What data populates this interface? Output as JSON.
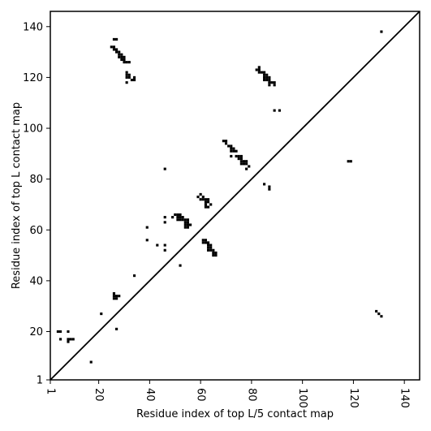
{
  "chart_data": {
    "type": "scatter",
    "xlabel": "Residue index of top L/5 contact map",
    "ylabel": "Residue index of top L contact map",
    "xlim": [
      1,
      146
    ],
    "ylim": [
      1,
      146
    ],
    "x_ticks": [
      1,
      20,
      40,
      60,
      80,
      100,
      120,
      140
    ],
    "y_ticks": [
      1,
      20,
      40,
      60,
      80,
      100,
      120,
      140
    ],
    "grid": false,
    "legend": "none",
    "diagonal": true,
    "marker": "square",
    "color": "#000000",
    "points": [
      [
        26,
        135
      ],
      [
        27,
        135
      ],
      [
        25,
        132
      ],
      [
        26,
        132
      ],
      [
        26,
        131
      ],
      [
        27,
        131
      ],
      [
        27,
        130
      ],
      [
        28,
        130
      ],
      [
        28,
        129
      ],
      [
        29,
        129
      ],
      [
        28,
        128
      ],
      [
        29,
        128
      ],
      [
        30,
        128
      ],
      [
        29,
        127
      ],
      [
        30,
        127
      ],
      [
        30,
        126
      ],
      [
        31,
        126
      ],
      [
        32,
        126
      ],
      [
        31,
        122
      ],
      [
        31,
        121
      ],
      [
        32,
        121
      ],
      [
        31,
        120
      ],
      [
        32,
        120
      ],
      [
        34,
        120
      ],
      [
        33,
        119
      ],
      [
        34,
        119
      ],
      [
        31,
        118
      ],
      [
        83,
        124
      ],
      [
        82,
        123
      ],
      [
        83,
        123
      ],
      [
        83,
        122
      ],
      [
        84,
        122
      ],
      [
        85,
        122
      ],
      [
        85,
        121
      ],
      [
        86,
        121
      ],
      [
        85,
        120
      ],
      [
        86,
        120
      ],
      [
        87,
        120
      ],
      [
        85,
        119
      ],
      [
        86,
        119
      ],
      [
        87,
        119
      ],
      [
        87,
        118
      ],
      [
        88,
        118
      ],
      [
        89,
        118
      ],
      [
        89,
        117
      ],
      [
        87,
        117
      ],
      [
        89,
        107
      ],
      [
        91,
        107
      ],
      [
        69,
        95
      ],
      [
        70,
        95
      ],
      [
        70,
        94
      ],
      [
        71,
        93
      ],
      [
        72,
        93
      ],
      [
        72,
        92
      ],
      [
        73,
        92
      ],
      [
        72,
        91
      ],
      [
        73,
        91
      ],
      [
        74,
        91
      ],
      [
        72,
        89
      ],
      [
        74,
        89
      ],
      [
        75,
        89
      ],
      [
        76,
        89
      ],
      [
        75,
        88
      ],
      [
        76,
        88
      ],
      [
        76,
        87
      ],
      [
        77,
        87
      ],
      [
        78,
        87
      ],
      [
        76,
        86
      ],
      [
        77,
        86
      ],
      [
        78,
        86
      ],
      [
        79,
        85
      ],
      [
        78,
        84
      ],
      [
        118,
        87
      ],
      [
        119,
        87
      ],
      [
        46,
        84
      ],
      [
        85,
        78
      ],
      [
        87,
        77
      ],
      [
        87,
        76
      ],
      [
        60,
        74
      ],
      [
        59,
        73
      ],
      [
        61,
        73
      ],
      [
        60,
        72
      ],
      [
        61,
        72
      ],
      [
        62,
        72
      ],
      [
        63,
        72
      ],
      [
        62,
        71
      ],
      [
        63,
        71
      ],
      [
        62,
        70
      ],
      [
        64,
        70
      ],
      [
        62,
        69
      ],
      [
        63,
        69
      ],
      [
        46,
        65
      ],
      [
        49,
        65
      ],
      [
        50,
        66
      ],
      [
        51,
        66
      ],
      [
        52,
        66
      ],
      [
        51,
        65
      ],
      [
        52,
        65
      ],
      [
        53,
        65
      ],
      [
        51,
        64
      ],
      [
        52,
        64
      ],
      [
        53,
        64
      ],
      [
        54,
        64
      ],
      [
        55,
        64
      ],
      [
        54,
        63
      ],
      [
        55,
        63
      ],
      [
        54,
        62
      ],
      [
        55,
        62
      ],
      [
        56,
        62
      ],
      [
        54,
        61
      ],
      [
        55,
        61
      ],
      [
        46,
        63
      ],
      [
        39,
        61
      ],
      [
        39,
        56
      ],
      [
        61,
        56
      ],
      [
        62,
        56
      ],
      [
        61,
        55
      ],
      [
        62,
        55
      ],
      [
        63,
        55
      ],
      [
        63,
        54
      ],
      [
        64,
        54
      ],
      [
        63,
        53
      ],
      [
        64,
        53
      ],
      [
        63,
        52
      ],
      [
        64,
        52
      ],
      [
        65,
        52
      ],
      [
        65,
        51
      ],
      [
        66,
        51
      ],
      [
        65,
        50
      ],
      [
        66,
        50
      ],
      [
        43,
        54
      ],
      [
        46,
        54
      ],
      [
        46,
        52
      ],
      [
        52,
        46
      ],
      [
        34,
        42
      ],
      [
        26,
        35
      ],
      [
        26,
        34
      ],
      [
        27,
        34
      ],
      [
        28,
        34
      ],
      [
        26,
        33
      ],
      [
        27,
        33
      ],
      [
        131,
        138
      ],
      [
        21,
        27
      ],
      [
        129,
        28
      ],
      [
        130,
        27
      ],
      [
        131,
        26
      ],
      [
        27,
        21
      ],
      [
        4,
        20
      ],
      [
        5,
        20
      ],
      [
        8,
        20
      ],
      [
        5,
        17
      ],
      [
        8,
        17
      ],
      [
        9,
        17
      ],
      [
        10,
        17
      ],
      [
        8,
        16
      ],
      [
        17,
        8
      ]
    ]
  }
}
